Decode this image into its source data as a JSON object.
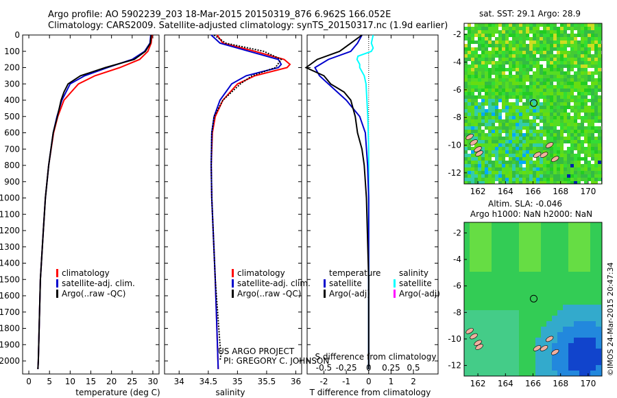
{
  "header": {
    "line1": "Argo profile: AO 5902239_203 18-Mar-2015 20150319_876 6.962S 166.052E",
    "line2": "Climatology: CARS2009. Satellite-adjusted climatology: synTS_20150317.nc (1.9d earlier)"
  },
  "colors": {
    "climatology": "#ff0000",
    "satellite": "#0000cc",
    "argo": "#000000",
    "sat_salinity": "#00ffff",
    "argo_salinity_adj": "#ff00ff"
  },
  "chart_data": [
    {
      "type": "line",
      "title": "",
      "xlabel": "temperature (deg C)",
      "ylabel": "",
      "xlim": [
        -1.5,
        31.5
      ],
      "ylim": [
        2080,
        0
      ],
      "xticks": [
        "0",
        "5",
        "10",
        "15",
        "20",
        "25",
        "30"
      ],
      "yticks": [
        "0",
        "100",
        "200",
        "300",
        "400",
        "500",
        "600",
        "700",
        "800",
        "900",
        "1000",
        "1100",
        "1200",
        "1300",
        "1400",
        "1500",
        "1600",
        "1700",
        "1800",
        "1900",
        "2000"
      ],
      "legend": [
        "climatology",
        "satellite-adj. clim.",
        "Argo(..raw -QC)"
      ],
      "series": [
        {
          "name": "climatology",
          "depth": [
            0,
            50,
            100,
            150,
            200,
            250,
            300,
            400,
            500,
            600,
            800,
            1000,
            1200,
            1500,
            2000,
            2050
          ],
          "values": [
            29.8,
            29.6,
            28.8,
            26.8,
            22.0,
            16.0,
            12.0,
            8.5,
            7.0,
            6.0,
            4.8,
            4.0,
            3.5,
            2.8,
            2.3,
            2.2
          ]
        },
        {
          "name": "satellite-adj. clim.",
          "depth": [
            0,
            50,
            100,
            150,
            200,
            250,
            300,
            400,
            500,
            600,
            800,
            1000,
            1200,
            1500,
            2000,
            2050
          ],
          "values": [
            29.5,
            29.3,
            28.0,
            25.0,
            19.0,
            13.5,
            10.0,
            8.0,
            6.8,
            5.9,
            4.8,
            4.0,
            3.5,
            2.8,
            2.3,
            2.2
          ]
        },
        {
          "name": "Argo(..raw -QC)",
          "depth": [
            0,
            50,
            100,
            150,
            200,
            250,
            300,
            350,
            400,
            500,
            600,
            800,
            1000,
            1200,
            1500,
            2000,
            2050
          ],
          "values": [
            29.6,
            29.4,
            28.2,
            25.5,
            18.5,
            12.5,
            9.5,
            8.5,
            7.8,
            6.9,
            5.9,
            4.8,
            4.0,
            3.5,
            2.8,
            2.3,
            2.2
          ]
        }
      ]
    },
    {
      "type": "line",
      "xlabel": "salinity",
      "xlim": [
        33.75,
        36.1
      ],
      "ylim": [
        2080,
        0
      ],
      "xticks": [
        "34",
        "34.5",
        "35",
        "35.5",
        "36"
      ],
      "legend": [
        "climatology",
        "satellite-adj. clim.",
        "Argo(..raw -QC)"
      ],
      "annotation": [
        "US ARGO PROJECT",
        "PI: GREGORY C. JOHNSON"
      ],
      "series": [
        {
          "name": "climatology",
          "depth": [
            0,
            50,
            100,
            150,
            180,
            200,
            250,
            300,
            400,
            500,
            600,
            800,
            1000,
            1500,
            2050
          ],
          "values": [
            34.65,
            34.75,
            35.3,
            35.8,
            35.9,
            35.85,
            35.3,
            35.0,
            34.75,
            34.62,
            34.57,
            34.55,
            34.56,
            34.62,
            34.67
          ]
        },
        {
          "name": "satellite-adj. clim.",
          "depth": [
            0,
            50,
            100,
            150,
            180,
            200,
            250,
            300,
            400,
            500,
            600,
            800,
            1000,
            1500,
            2050
          ],
          "values": [
            34.55,
            34.7,
            35.2,
            35.7,
            35.75,
            35.7,
            35.15,
            34.9,
            34.7,
            34.6,
            34.56,
            34.55,
            34.56,
            34.62,
            34.67
          ]
        },
        {
          "name": "Argo(..raw -QC)",
          "depth": [
            0,
            50,
            100,
            150,
            200,
            250,
            300,
            400,
            500,
            600,
            800,
            1000,
            1500,
            1900,
            1950,
            2000
          ],
          "values": [
            34.6,
            34.8,
            35.45,
            35.75,
            35.65,
            35.25,
            35.05,
            34.75,
            34.6,
            34.56,
            34.55,
            34.56,
            34.62,
            34.7,
            34.72,
            34.7
          ]
        }
      ]
    },
    {
      "type": "line",
      "xlabel": "T difference from climatology",
      "xlabel_top": "S difference from climatology",
      "xlim": [
        -2.75,
        3.1
      ],
      "xlim_s": [
        -0.6875,
        0.775
      ],
      "ylim": [
        2080,
        0
      ],
      "xticks": [
        "-2",
        "-1",
        "0",
        "1",
        "2"
      ],
      "xticks_s": [
        "-0.5",
        "-0.25",
        "0",
        "0.25",
        "0.5"
      ],
      "legend_titles": [
        "temperature",
        "salinity"
      ],
      "legend": [
        "satellite",
        "Argo(-adj)",
        "satellite",
        "Argo(-adj)"
      ],
      "series": [
        {
          "name": "T satellite",
          "depth": [
            0,
            50,
            100,
            150,
            200,
            250,
            300,
            400,
            500,
            600,
            800,
            1000,
            1500,
            2050
          ],
          "values": [
            -0.3,
            -0.5,
            -0.8,
            -1.8,
            -2.4,
            -2.2,
            -1.8,
            -1.0,
            -0.4,
            -0.15,
            -0.05,
            0,
            0,
            0
          ]
        },
        {
          "name": "T Argo(-adj)",
          "depth": [
            0,
            50,
            100,
            150,
            200,
            250,
            300,
            350,
            400,
            500,
            600,
            700,
            800,
            900,
            1000,
            1500,
            2050
          ],
          "values": [
            -0.3,
            -0.8,
            -1.3,
            -2.3,
            -2.8,
            -2.0,
            -1.7,
            -1.1,
            -0.8,
            -0.6,
            -0.5,
            -0.3,
            -0.2,
            -0.15,
            -0.1,
            0,
            0
          ]
        },
        {
          "name": "S satellite",
          "depth": [
            0,
            50,
            80,
            100,
            130,
            150,
            180,
            200,
            250,
            300,
            400,
            500,
            700,
            1000,
            1500,
            2050
          ],
          "values": [
            0.05,
            0.03,
            0.05,
            0.03,
            -0.12,
            -0.13,
            -0.1,
            -0.1,
            -0.05,
            -0.03,
            -0.02,
            -0.01,
            0,
            0,
            0,
            0
          ]
        }
      ]
    },
    {
      "type": "heatmap",
      "title": "sat. SST: 29.1 Argo: 28.9",
      "xlim": [
        161,
        171
      ],
      "ylim": [
        -12.8,
        -1.2
      ],
      "xticks": [
        "162",
        "164",
        "166",
        "168",
        "170"
      ],
      "yticks": [
        "-2",
        "-4",
        "-6",
        "-8",
        "-10",
        "-12"
      ],
      "marker": {
        "lon": 166.05,
        "lat": -6.96
      },
      "sst_sat": 29.1,
      "sst_argo": 28.9
    },
    {
      "type": "heatmap",
      "title_line1": "Altim. SLA: -0.046",
      "title_line2": "Argo h1000: NaN h2000: NaN",
      "xlim": [
        161,
        171
      ],
      "ylim": [
        -12.8,
        -1.2
      ],
      "xticks": [
        "162",
        "164",
        "166",
        "168",
        "170"
      ],
      "yticks": [
        "-2",
        "-4",
        "-6",
        "-8",
        "-10",
        "-12"
      ],
      "marker": {
        "lon": 166.05,
        "lat": -6.96
      },
      "sla": -0.046
    }
  ],
  "footer": {
    "credit": "©IMOS 24-Mar-2015 20:47:34"
  }
}
